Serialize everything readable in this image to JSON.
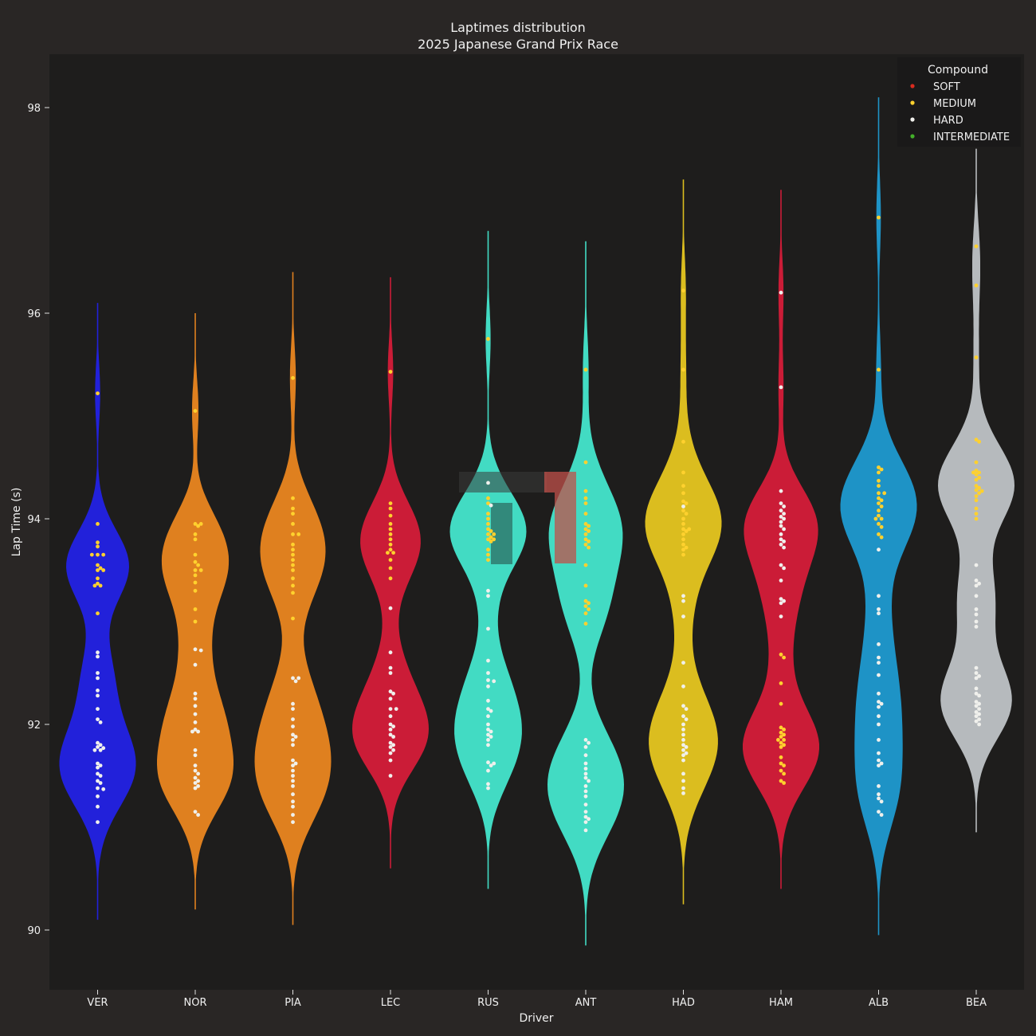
{
  "chart_data": {
    "type": "violin",
    "title": "Laptimes distribution",
    "subtitle": "2025 Japanese Grand Prix Race",
    "xlabel": "Driver",
    "ylabel": "Lap Time (s)",
    "ylim": [
      89.4,
      98.5
    ],
    "yticks": [
      90,
      92,
      94,
      96,
      98
    ],
    "grid": false,
    "legend": {
      "title": "Compound",
      "placement": "top-right",
      "entries": [
        {
          "label": "SOFT",
          "color": "#da2b1f"
        },
        {
          "label": "MEDIUM",
          "color": "#ffd12e"
        },
        {
          "label": "HARD",
          "color": "#f0f0ec"
        },
        {
          "label": "INTERMEDIATE",
          "color": "#43b02a"
        }
      ]
    },
    "drivers": [
      {
        "name": "VER",
        "color": "#2221da",
        "range": [
          90.1,
          96.1
        ],
        "medium": [
          95.22,
          93.95,
          93.77,
          93.73,
          93.65,
          93.65,
          93.65,
          93.55,
          93.52,
          93.5,
          93.5,
          93.42,
          93.37,
          93.35,
          93.35,
          93.08
        ],
        "hard": [
          92.7,
          92.66,
          92.5,
          92.45,
          92.33,
          92.28,
          92.15,
          92.05,
          92.02,
          91.82,
          91.8,
          91.78,
          91.77,
          91.75,
          91.75,
          91.62,
          91.6,
          91.58,
          91.52,
          91.5,
          91.45,
          91.43,
          91.38,
          91.37,
          91.3,
          91.2,
          91.05
        ]
      },
      {
        "name": "NOR",
        "color": "#df801f",
        "range": [
          90.2,
          96.0
        ],
        "medium": [
          95.05,
          93.95,
          93.95,
          93.93,
          93.85,
          93.8,
          93.65,
          93.58,
          93.55,
          93.5,
          93.5,
          93.45,
          93.38,
          93.3,
          93.12,
          93.0
        ],
        "hard": [
          92.73,
          92.72,
          92.58,
          92.3,
          92.25,
          92.18,
          92.1,
          92.02,
          91.95,
          91.93,
          91.93,
          91.75,
          91.7,
          91.6,
          91.55,
          91.52,
          91.48,
          91.45,
          91.43,
          91.4,
          91.38,
          91.15,
          91.12
        ]
      },
      {
        "name": "PIA",
        "color": "#df801f",
        "range": [
          90.05,
          96.4
        ],
        "medium": [
          95.37,
          94.2,
          94.1,
          94.05,
          93.95,
          93.85,
          93.85,
          93.75,
          93.7,
          93.65,
          93.6,
          93.55,
          93.5,
          93.42,
          93.35,
          93.28,
          93.03
        ],
        "hard": [
          92.45,
          92.45,
          92.42,
          92.2,
          92.15,
          92.05,
          91.98,
          91.9,
          91.88,
          91.85,
          91.8,
          91.65,
          91.62,
          91.6,
          91.55,
          91.5,
          91.45,
          91.4,
          91.32,
          91.25,
          91.2,
          91.12,
          91.05
        ]
      },
      {
        "name": "LEC",
        "color": "#cb1c37",
        "range": [
          90.6,
          96.35
        ],
        "medium": [
          95.43,
          94.15,
          94.1,
          94.03,
          93.95,
          93.9,
          93.85,
          93.8,
          93.75,
          93.7,
          93.67,
          93.67,
          93.6,
          93.52,
          93.42
        ],
        "hard": [
          93.13,
          92.7,
          92.55,
          92.5,
          92.32,
          92.3,
          92.25,
          92.15,
          92.15,
          92.08,
          92.0,
          91.98,
          91.95,
          91.9,
          91.88,
          91.82,
          91.8,
          91.78,
          91.75,
          91.72,
          91.65,
          91.5
        ]
      },
      {
        "name": "RUS",
        "color": "#42dbc3",
        "range": [
          90.4,
          96.8
        ],
        "medium": [
          95.75,
          94.2,
          94.15,
          94.05,
          94.0,
          93.95,
          93.9,
          93.88,
          93.85,
          93.85,
          93.82,
          93.8,
          93.8,
          93.78,
          93.7,
          93.65,
          93.6
        ],
        "hard": [
          94.35,
          94.13,
          93.3,
          93.25,
          92.93,
          92.62,
          92.5,
          92.43,
          92.42,
          92.37,
          92.23,
          92.15,
          92.13,
          92.08,
          92.0,
          91.95,
          91.93,
          91.9,
          91.88,
          91.85,
          91.8,
          91.63,
          91.62,
          91.6,
          91.55,
          91.42,
          91.38
        ]
      },
      {
        "name": "ANT",
        "color": "#42dbc3",
        "range": [
          89.85,
          96.7
        ],
        "medium": [
          95.45,
          94.55,
          94.27,
          94.2,
          94.15,
          94.05,
          93.95,
          93.93,
          93.9,
          93.88,
          93.85,
          93.8,
          93.78,
          93.75,
          93.72,
          93.55,
          93.35,
          93.2,
          93.18,
          93.15,
          93.12,
          93.08,
          92.98
        ],
        "hard": [
          91.85,
          91.82,
          91.78,
          91.7,
          91.62,
          91.57,
          91.52,
          91.48,
          91.45,
          91.4,
          91.35,
          91.3,
          91.22,
          91.15,
          91.1,
          91.08,
          91.05,
          90.97
        ]
      },
      {
        "name": "HAD",
        "color": "#dbbd1f",
        "range": [
          90.25,
          97.3
        ],
        "medium": [
          96.22,
          95.45,
          94.75,
          94.45,
          94.32,
          94.25,
          94.17,
          94.15,
          94.08,
          94.05,
          94.0,
          93.95,
          93.9,
          93.9,
          93.88,
          93.85,
          93.8,
          93.75,
          93.72,
          93.7,
          93.65
        ],
        "hard": [
          94.12,
          93.25,
          93.2,
          93.05,
          92.6,
          92.37,
          92.18,
          92.15,
          92.08,
          92.05,
          92.0,
          91.95,
          91.9,
          91.85,
          91.8,
          91.78,
          91.75,
          91.72,
          91.7,
          91.65,
          91.52,
          91.45,
          91.38,
          91.33
        ]
      },
      {
        "name": "HAM",
        "color": "#cb1c37",
        "range": [
          90.4,
          97.2
        ],
        "medium": [
          92.68,
          92.65,
          92.4,
          92.2,
          91.97,
          91.95,
          91.92,
          91.9,
          91.88,
          91.85,
          91.85,
          91.82,
          91.8,
          91.78,
          91.68,
          91.62,
          91.6,
          91.55,
          91.52,
          91.45,
          91.43
        ],
        "hard": [
          96.2,
          95.28,
          94.27,
          94.15,
          94.12,
          94.08,
          94.05,
          94.02,
          94.0,
          93.97,
          93.93,
          93.9,
          93.85,
          93.8,
          93.78,
          93.75,
          93.72,
          93.55,
          93.52,
          93.4,
          93.22,
          93.2,
          93.18,
          93.05
        ]
      },
      {
        "name": "ALB",
        "color": "#1e93c6",
        "range": [
          89.95,
          98.1
        ],
        "medium": [
          96.93,
          95.45,
          94.5,
          94.48,
          94.45,
          94.37,
          94.32,
          94.25,
          94.25,
          94.2,
          94.18,
          94.15,
          94.12,
          94.08,
          94.03,
          94.0,
          94.0,
          93.95,
          93.92,
          93.85,
          93.82
        ],
        "hard": [
          93.7,
          93.25,
          93.12,
          93.08,
          92.78,
          92.65,
          92.6,
          92.48,
          92.3,
          92.22,
          92.2,
          92.17,
          92.08,
          92.0,
          91.85,
          91.72,
          91.65,
          91.62,
          91.6,
          91.4,
          91.32,
          91.28,
          91.25,
          91.15,
          91.12
        ]
      },
      {
        "name": "BEA",
        "color": "#b6babd",
        "range": [
          90.95,
          97.6
        ],
        "medium": [
          96.65,
          96.27,
          95.57,
          94.77,
          94.75,
          94.55,
          94.47,
          94.45,
          94.45,
          94.43,
          94.4,
          94.38,
          94.32,
          94.3,
          94.28,
          94.27,
          94.25,
          94.22,
          94.18,
          94.1,
          94.05,
          94.0
        ],
        "hard": [
          93.55,
          93.4,
          93.37,
          93.35,
          93.25,
          93.12,
          93.07,
          93.0,
          92.95,
          92.55,
          92.5,
          92.47,
          92.45,
          92.35,
          92.3,
          92.28,
          92.22,
          92.2,
          92.18,
          92.15,
          92.12,
          92.1,
          92.08,
          92.05,
          92.03,
          92.0
        ]
      }
    ]
  }
}
